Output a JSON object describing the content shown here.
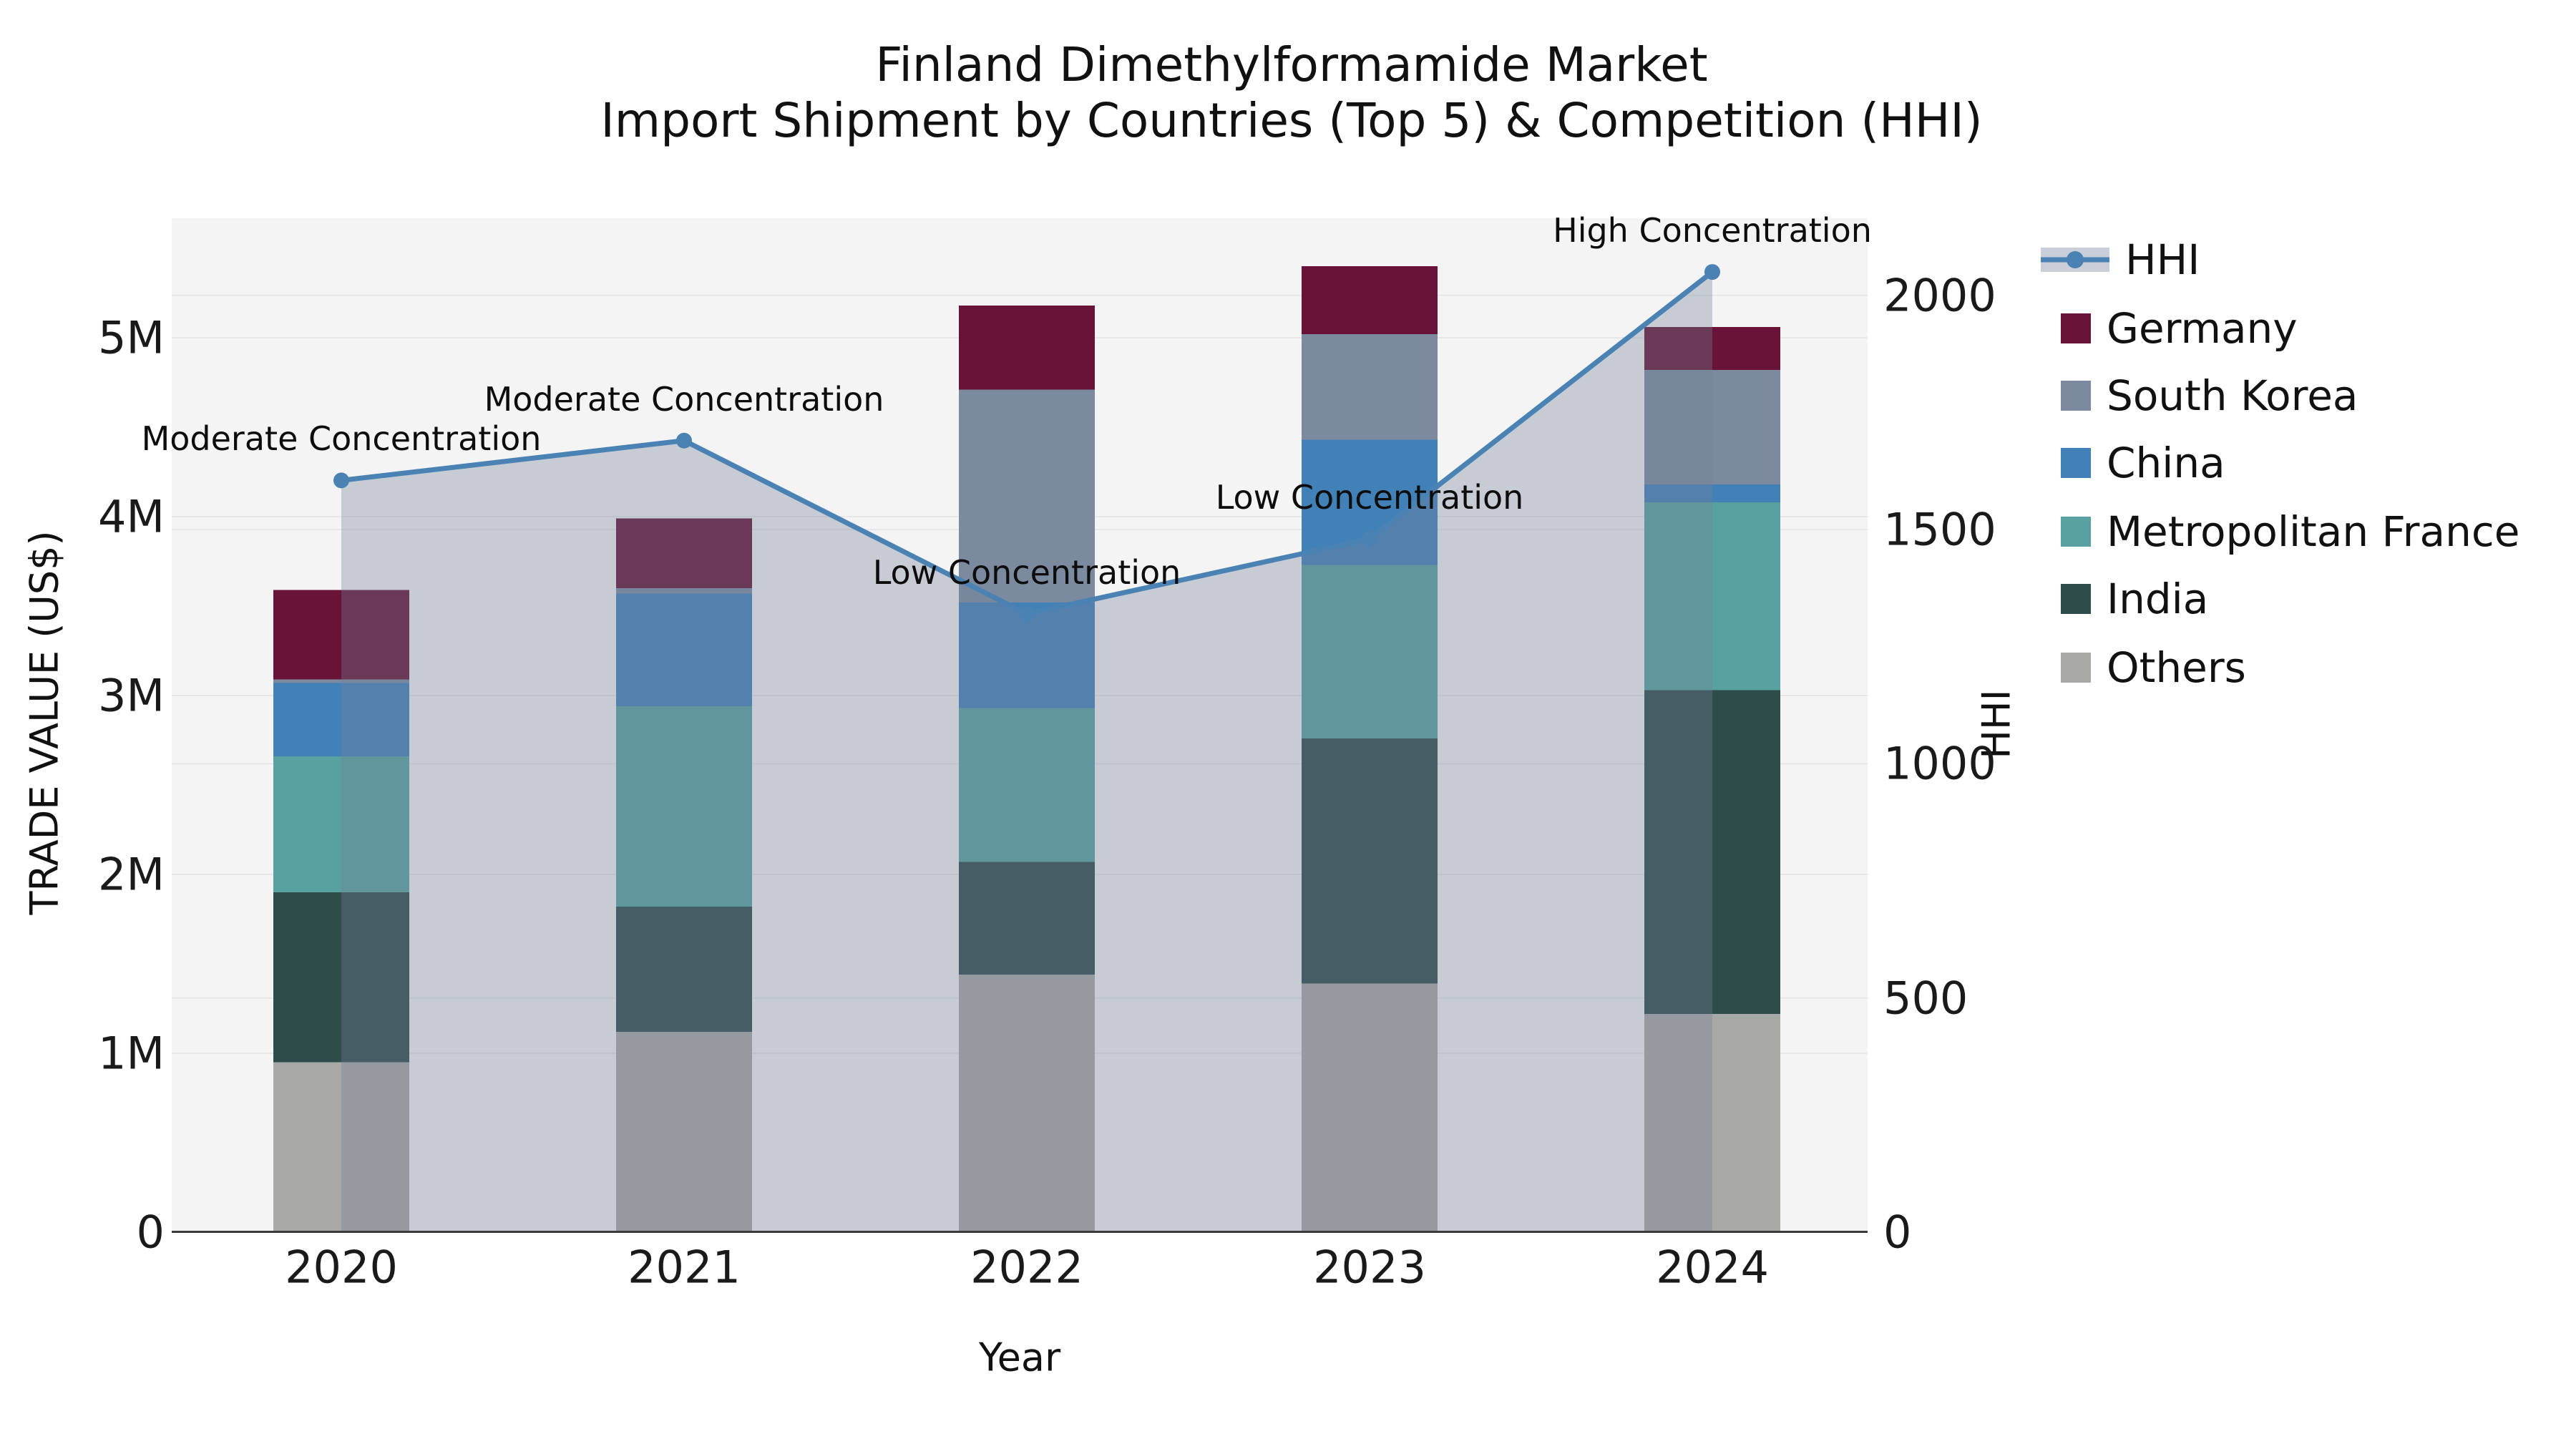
{
  "title": {
    "line1": "Finland Dimethylformamide Market",
    "line2": "Import Shipment by Countries (Top 5) & Competition (HHI)"
  },
  "axes": {
    "y_left": {
      "title": "TRADE VALUE (US$)",
      "tick_labels": [
        "0",
        "1M",
        "2M",
        "3M",
        "4M",
        "5M"
      ],
      "tick_values": [
        0,
        1,
        2,
        3,
        4,
        5
      ]
    },
    "y_right": {
      "title": "HHI",
      "tick_labels": [
        "0",
        "500",
        "1000",
        "1500",
        "2000"
      ],
      "tick_values": [
        0,
        500,
        1000,
        1500,
        2000
      ]
    },
    "x": {
      "title": "Year",
      "tick_labels": [
        "2020",
        "2021",
        "2022",
        "2023",
        "2024"
      ]
    }
  },
  "legend": {
    "items": [
      {
        "label": "HHI",
        "type": "line",
        "color": "#4a82b4",
        "band_color": "#c9ced8"
      },
      {
        "label": "Germany",
        "type": "patch",
        "color": "#681337"
      },
      {
        "label": "South Korea",
        "type": "patch",
        "color": "#7b8a9e"
      },
      {
        "label": "China",
        "type": "patch",
        "color": "#4280b8"
      },
      {
        "label": "Metropolitan France",
        "type": "patch",
        "color": "#58a1a0"
      },
      {
        "label": "India",
        "type": "patch",
        "color": "#2d4c4a"
      },
      {
        "label": "Others",
        "type": "patch",
        "color": "#a8a8a6"
      }
    ]
  },
  "annotations": [
    {
      "text": "Moderate Concentration",
      "year": "2020"
    },
    {
      "text": "Moderate Concentration",
      "year": "2021"
    },
    {
      "text": "Low Concentration",
      "year": "2022"
    },
    {
      "text": "Low Concentration",
      "year": "2023"
    },
    {
      "text": "High Concentration",
      "year": "2024"
    }
  ],
  "colors": {
    "page_bg": "#ffffff",
    "plot_bg": "#f4f4f5",
    "grid": "#e7e7ea",
    "axis_line": "#3a3a3a",
    "hhi_line": "#4a82b4",
    "hhi_area": "#728098",
    "hhi_area_alpha": 0.35
  },
  "chart_data": {
    "type": "combo-stacked-bar-and-line-area",
    "title": "Finland Dimethylformamide Market — Import Shipment by Countries (Top 5) & Competition (HHI)",
    "xlabel": "Year",
    "ylabel_left": "TRADE VALUE (US$)",
    "ylabel_right": "HHI",
    "categories": [
      "2020",
      "2021",
      "2022",
      "2023",
      "2024"
    ],
    "unit_left": "millions of US$",
    "ylim_left": [
      0,
      5.67
    ],
    "ylim_right": [
      0,
      2165
    ],
    "grid": true,
    "legend_position": "right",
    "stack_order_bottom_to_top": [
      "Others",
      "India",
      "Metropolitan France",
      "China",
      "South Korea",
      "Germany"
    ],
    "bar_series": [
      {
        "name": "Others",
        "color": "#a8a8a6",
        "values": [
          0.95,
          1.12,
          1.44,
          1.39,
          1.22
        ]
      },
      {
        "name": "India",
        "color": "#2d4c4a",
        "values": [
          0.95,
          0.7,
          0.63,
          1.37,
          1.81
        ]
      },
      {
        "name": "Metropolitan France",
        "color": "#58a1a0",
        "values": [
          0.76,
          1.12,
          0.86,
          0.97,
          1.05
        ]
      },
      {
        "name": "China",
        "color": "#4280b8",
        "values": [
          0.41,
          0.63,
          0.59,
          0.7,
          0.1
        ]
      },
      {
        "name": "South Korea",
        "color": "#7b8a9e",
        "values": [
          0.02,
          0.03,
          1.19,
          0.59,
          0.64
        ]
      },
      {
        "name": "Germany",
        "color": "#681337",
        "values": [
          0.5,
          0.39,
          0.47,
          0.38,
          0.24
        ]
      }
    ],
    "bar_totals": [
      3.59,
      3.99,
      5.18,
      5.4,
      5.06
    ],
    "line_series": {
      "name": "HHI",
      "color": "#4a82b4",
      "values": [
        1605,
        1690,
        1320,
        1480,
        2050
      ],
      "area_fill": "#728098",
      "area_alpha": 0.35,
      "markers": "circle"
    }
  }
}
